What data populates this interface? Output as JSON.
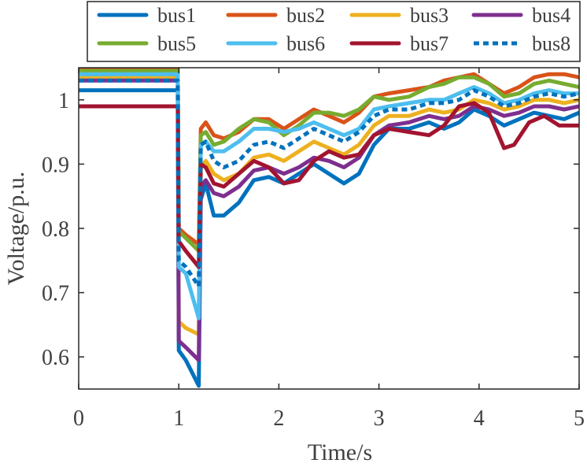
{
  "chart_data": {
    "type": "line",
    "title": "",
    "xlabel": "Time/s",
    "ylabel": "Voltage/p.u.",
    "xlim": [
      0,
      5
    ],
    "ylim": [
      0.55,
      1.05
    ],
    "xticks": [
      0,
      1,
      2,
      3,
      4,
      5
    ],
    "xtick_labels": [
      "0",
      "1",
      "2",
      "3",
      "4",
      "5"
    ],
    "yticks": [
      0.6,
      0.7,
      0.8,
      0.9,
      1.0
    ],
    "ytick_labels": [
      "0.6",
      "0.7",
      "0.8",
      "0.9",
      "1"
    ],
    "grid": false,
    "legend": {
      "placement": "top",
      "columns": 4
    },
    "series": [
      {
        "name": "bus1",
        "color": "#0072BD",
        "dash": false,
        "points": [
          [
            0,
            1.015
          ],
          [
            0.99,
            1.015
          ],
          [
            1.0,
            0.61
          ],
          [
            1.07,
            0.595
          ],
          [
            1.2,
            0.555
          ],
          [
            1.22,
            0.845
          ],
          [
            1.27,
            0.87
          ],
          [
            1.35,
            0.82
          ],
          [
            1.45,
            0.82
          ],
          [
            1.6,
            0.84
          ],
          [
            1.75,
            0.875
          ],
          [
            1.9,
            0.88
          ],
          [
            2.05,
            0.87
          ],
          [
            2.2,
            0.885
          ],
          [
            2.35,
            0.9
          ],
          [
            2.5,
            0.885
          ],
          [
            2.65,
            0.87
          ],
          [
            2.8,
            0.885
          ],
          [
            2.95,
            0.93
          ],
          [
            3.1,
            0.955
          ],
          [
            3.3,
            0.955
          ],
          [
            3.5,
            0.965
          ],
          [
            3.65,
            0.955
          ],
          [
            3.8,
            0.965
          ],
          [
            3.95,
            0.985
          ],
          [
            4.1,
            0.975
          ],
          [
            4.25,
            0.96
          ],
          [
            4.4,
            0.97
          ],
          [
            4.55,
            0.98
          ],
          [
            4.7,
            0.975
          ],
          [
            4.85,
            0.97
          ],
          [
            5.0,
            0.98
          ]
        ]
      },
      {
        "name": "bus2",
        "color": "#D95319",
        "dash": false,
        "points": [
          [
            0,
            1.05
          ],
          [
            0.99,
            1.05
          ],
          [
            1.0,
            0.8
          ],
          [
            1.07,
            0.79
          ],
          [
            1.2,
            0.775
          ],
          [
            1.22,
            0.955
          ],
          [
            1.27,
            0.965
          ],
          [
            1.35,
            0.945
          ],
          [
            1.45,
            0.94
          ],
          [
            1.6,
            0.95
          ],
          [
            1.75,
            0.97
          ],
          [
            1.9,
            0.97
          ],
          [
            2.05,
            0.955
          ],
          [
            2.2,
            0.97
          ],
          [
            2.35,
            0.985
          ],
          [
            2.5,
            0.975
          ],
          [
            2.65,
            0.965
          ],
          [
            2.8,
            0.98
          ],
          [
            2.95,
            1.005
          ],
          [
            3.1,
            1.01
          ],
          [
            3.3,
            1.015
          ],
          [
            3.5,
            1.02
          ],
          [
            3.65,
            1.03
          ],
          [
            3.8,
            1.035
          ],
          [
            3.95,
            1.04
          ],
          [
            4.1,
            1.025
          ],
          [
            4.25,
            1.01
          ],
          [
            4.4,
            1.02
          ],
          [
            4.55,
            1.035
          ],
          [
            4.7,
            1.04
          ],
          [
            4.85,
            1.04
          ],
          [
            5.0,
            1.035
          ]
        ]
      },
      {
        "name": "bus3",
        "color": "#EDB120",
        "dash": false,
        "points": [
          [
            0,
            1.035
          ],
          [
            0.99,
            1.035
          ],
          [
            1.0,
            0.655
          ],
          [
            1.07,
            0.645
          ],
          [
            1.2,
            0.635
          ],
          [
            1.22,
            0.895
          ],
          [
            1.27,
            0.905
          ],
          [
            1.35,
            0.885
          ],
          [
            1.45,
            0.875
          ],
          [
            1.6,
            0.885
          ],
          [
            1.75,
            0.91
          ],
          [
            1.9,
            0.915
          ],
          [
            2.05,
            0.905
          ],
          [
            2.2,
            0.92
          ],
          [
            2.35,
            0.935
          ],
          [
            2.5,
            0.925
          ],
          [
            2.65,
            0.915
          ],
          [
            2.8,
            0.93
          ],
          [
            2.95,
            0.96
          ],
          [
            3.1,
            0.975
          ],
          [
            3.3,
            0.975
          ],
          [
            3.5,
            0.985
          ],
          [
            3.65,
            0.98
          ],
          [
            3.8,
            0.985
          ],
          [
            3.95,
            1.0
          ],
          [
            4.1,
            0.995
          ],
          [
            4.25,
            0.985
          ],
          [
            4.4,
            0.99
          ],
          [
            4.55,
            1.0
          ],
          [
            4.7,
            1.0
          ],
          [
            4.85,
            0.995
          ],
          [
            5.0,
            1.0
          ]
        ]
      },
      {
        "name": "bus4",
        "color": "#7E2F8E",
        "dash": false,
        "points": [
          [
            0,
            1.03
          ],
          [
            0.99,
            1.03
          ],
          [
            1.0,
            0.625
          ],
          [
            1.07,
            0.615
          ],
          [
            1.2,
            0.595
          ],
          [
            1.22,
            0.865
          ],
          [
            1.27,
            0.875
          ],
          [
            1.35,
            0.855
          ],
          [
            1.45,
            0.85
          ],
          [
            1.6,
            0.865
          ],
          [
            1.75,
            0.89
          ],
          [
            1.9,
            0.895
          ],
          [
            2.05,
            0.885
          ],
          [
            2.2,
            0.895
          ],
          [
            2.35,
            0.91
          ],
          [
            2.5,
            0.905
          ],
          [
            2.65,
            0.895
          ],
          [
            2.8,
            0.91
          ],
          [
            2.95,
            0.945
          ],
          [
            3.1,
            0.96
          ],
          [
            3.3,
            0.965
          ],
          [
            3.5,
            0.975
          ],
          [
            3.65,
            0.97
          ],
          [
            3.8,
            0.975
          ],
          [
            3.95,
            0.99
          ],
          [
            4.1,
            0.985
          ],
          [
            4.25,
            0.975
          ],
          [
            4.4,
            0.98
          ],
          [
            4.55,
            0.99
          ],
          [
            4.7,
            0.99
          ],
          [
            4.85,
            0.985
          ],
          [
            5.0,
            0.99
          ]
        ]
      },
      {
        "name": "bus5",
        "color": "#77AC30",
        "dash": false,
        "points": [
          [
            0,
            1.045
          ],
          [
            0.99,
            1.045
          ],
          [
            1.0,
            0.795
          ],
          [
            1.07,
            0.785
          ],
          [
            1.2,
            0.765
          ],
          [
            1.22,
            0.945
          ],
          [
            1.27,
            0.95
          ],
          [
            1.35,
            0.93
          ],
          [
            1.45,
            0.935
          ],
          [
            1.6,
            0.955
          ],
          [
            1.75,
            0.97
          ],
          [
            1.9,
            0.965
          ],
          [
            2.05,
            0.945
          ],
          [
            2.2,
            0.96
          ],
          [
            2.35,
            0.98
          ],
          [
            2.5,
            0.98
          ],
          [
            2.65,
            0.975
          ],
          [
            2.8,
            0.985
          ],
          [
            2.95,
            1.005
          ],
          [
            3.1,
            1.0
          ],
          [
            3.3,
            1.005
          ],
          [
            3.5,
            1.02
          ],
          [
            3.65,
            1.025
          ],
          [
            3.8,
            1.035
          ],
          [
            3.95,
            1.035
          ],
          [
            4.1,
            1.025
          ],
          [
            4.25,
            1.005
          ],
          [
            4.4,
            1.01
          ],
          [
            4.55,
            1.025
          ],
          [
            4.7,
            1.03
          ],
          [
            4.85,
            1.025
          ],
          [
            5.0,
            1.02
          ]
        ]
      },
      {
        "name": "bus6",
        "color": "#4DBEEE",
        "dash": false,
        "points": [
          [
            0,
            1.04
          ],
          [
            0.99,
            1.04
          ],
          [
            1.0,
            0.74
          ],
          [
            1.07,
            0.73
          ],
          [
            1.2,
            0.66
          ],
          [
            1.22,
            0.93
          ],
          [
            1.27,
            0.935
          ],
          [
            1.35,
            0.92
          ],
          [
            1.45,
            0.92
          ],
          [
            1.6,
            0.935
          ],
          [
            1.75,
            0.955
          ],
          [
            1.9,
            0.955
          ],
          [
            2.05,
            0.95
          ],
          [
            2.2,
            0.955
          ],
          [
            2.35,
            0.965
          ],
          [
            2.5,
            0.955
          ],
          [
            2.65,
            0.945
          ],
          [
            2.8,
            0.955
          ],
          [
            2.95,
            0.985
          ],
          [
            3.1,
            0.99
          ],
          [
            3.3,
            0.995
          ],
          [
            3.5,
            1.0
          ],
          [
            3.65,
            1.0
          ],
          [
            3.8,
            1.01
          ],
          [
            3.95,
            1.02
          ],
          [
            4.1,
            1.01
          ],
          [
            4.25,
            0.995
          ],
          [
            4.4,
            1.0
          ],
          [
            4.55,
            1.01
          ],
          [
            4.7,
            1.015
          ],
          [
            4.85,
            1.01
          ],
          [
            5.0,
            1.01
          ]
        ]
      },
      {
        "name": "bus7",
        "color": "#A2142F",
        "dash": false,
        "points": [
          [
            0,
            0.99
          ],
          [
            0.99,
            0.99
          ],
          [
            1.0,
            0.78
          ],
          [
            1.07,
            0.765
          ],
          [
            1.2,
            0.74
          ],
          [
            1.22,
            0.9
          ],
          [
            1.27,
            0.895
          ],
          [
            1.35,
            0.87
          ],
          [
            1.45,
            0.865
          ],
          [
            1.6,
            0.885
          ],
          [
            1.75,
            0.905
          ],
          [
            1.9,
            0.895
          ],
          [
            2.05,
            0.87
          ],
          [
            2.2,
            0.875
          ],
          [
            2.35,
            0.905
          ],
          [
            2.5,
            0.92
          ],
          [
            2.65,
            0.91
          ],
          [
            2.8,
            0.915
          ],
          [
            2.95,
            0.945
          ],
          [
            3.1,
            0.955
          ],
          [
            3.3,
            0.95
          ],
          [
            3.5,
            0.945
          ],
          [
            3.65,
            0.96
          ],
          [
            3.8,
            0.99
          ],
          [
            3.95,
            0.995
          ],
          [
            4.1,
            0.98
          ],
          [
            4.25,
            0.925
          ],
          [
            4.35,
            0.93
          ],
          [
            4.5,
            0.965
          ],
          [
            4.65,
            0.975
          ],
          [
            4.8,
            0.96
          ],
          [
            5.0,
            0.96
          ]
        ]
      },
      {
        "name": "bus8",
        "color": "#0072BD",
        "dash": true,
        "points": [
          [
            0,
            1.03
          ],
          [
            0.99,
            1.03
          ],
          [
            1.0,
            0.75
          ],
          [
            1.07,
            0.74
          ],
          [
            1.2,
            0.71
          ],
          [
            1.22,
            0.93
          ],
          [
            1.27,
            0.935
          ],
          [
            1.35,
            0.905
          ],
          [
            1.45,
            0.895
          ],
          [
            1.6,
            0.905
          ],
          [
            1.75,
            0.93
          ],
          [
            1.9,
            0.935
          ],
          [
            2.05,
            0.925
          ],
          [
            2.2,
            0.94
          ],
          [
            2.35,
            0.955
          ],
          [
            2.5,
            0.945
          ],
          [
            2.65,
            0.935
          ],
          [
            2.8,
            0.95
          ],
          [
            2.95,
            0.975
          ],
          [
            3.1,
            0.985
          ],
          [
            3.3,
            0.985
          ],
          [
            3.5,
            0.995
          ],
          [
            3.65,
            0.995
          ],
          [
            3.8,
            1.0
          ],
          [
            3.95,
            1.015
          ],
          [
            4.1,
            1.005
          ],
          [
            4.25,
            0.99
          ],
          [
            4.4,
            0.995
          ],
          [
            4.55,
            1.005
          ],
          [
            4.7,
            1.01
          ],
          [
            4.85,
            1.005
          ],
          [
            5.0,
            1.01
          ]
        ]
      }
    ]
  }
}
